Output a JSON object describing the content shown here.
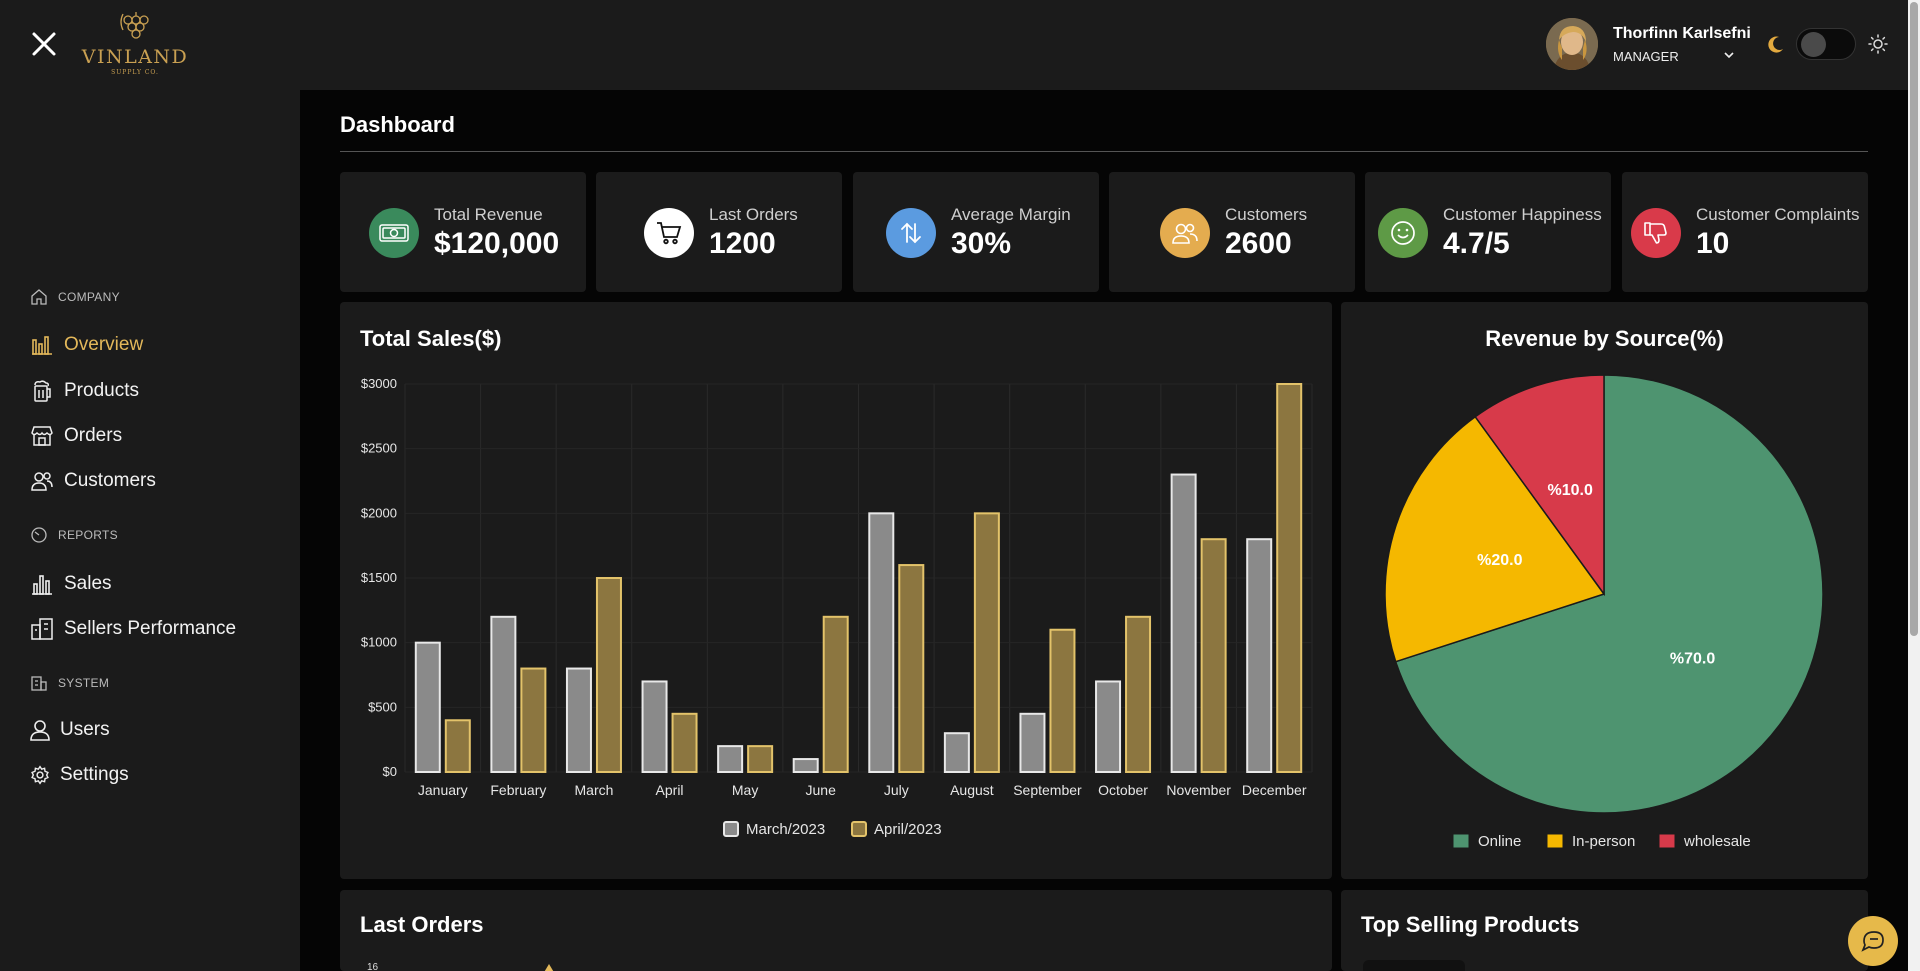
{
  "brand": {
    "name": "VINLAND",
    "tagline": "SUPPLY CO."
  },
  "user": {
    "name": "Thorfinn Karlsefni",
    "role": "MANAGER"
  },
  "sidebar": {
    "sections": [
      {
        "label": "COMPANY",
        "icon": "home-icon",
        "items": [
          {
            "label": "Overview",
            "icon": "bar-chart-icon",
            "active": true
          },
          {
            "label": "Products",
            "icon": "beer-mug-icon",
            "active": false
          },
          {
            "label": "Orders",
            "icon": "store-icon",
            "active": false
          },
          {
            "label": "Customers",
            "icon": "users-icon",
            "active": false
          }
        ]
      },
      {
        "label": "REPORTS",
        "icon": "gauge-icon",
        "items": [
          {
            "label": "Sales",
            "icon": "bar-graph-icon",
            "active": false
          },
          {
            "label": "Sellers Performance",
            "icon": "buildings-icon",
            "active": false
          }
        ]
      },
      {
        "label": "SYSTEM",
        "icon": "building-icon",
        "items": [
          {
            "label": "Users",
            "icon": "user-icon",
            "active": false
          },
          {
            "label": "Settings",
            "icon": "gear-icon",
            "active": false
          }
        ]
      }
    ]
  },
  "page": {
    "title": "Dashboard"
  },
  "stats": [
    {
      "label": "Total Revenue",
      "value": "$120,000",
      "icon": "money-icon",
      "color": "#3a8a5c"
    },
    {
      "label": "Last Orders",
      "value": "1200",
      "icon": "cart-icon",
      "color": "#ffffff"
    },
    {
      "label": "Average Margin",
      "value": "30%",
      "icon": "arrows-updown-icon",
      "color": "#5b9be0"
    },
    {
      "label": "Customers",
      "value": "2600",
      "icon": "customers-icon",
      "color": "#e4ac4f"
    },
    {
      "label": "Customer Happiness",
      "value": "4.7/5",
      "icon": "smile-icon",
      "color": "#5e9a46"
    },
    {
      "label": "Customer Complaints",
      "value": "10",
      "icon": "thumbs-down-icon",
      "color": "#d93a4a"
    }
  ],
  "panels": {
    "sales": {
      "title": "Total Sales($)"
    },
    "revenue": {
      "title": "Revenue by Source(%)"
    },
    "last_orders": {
      "title": "Last Orders",
      "peek_tick": "16"
    },
    "top_products": {
      "title": "Top Selling Products"
    }
  },
  "colors": {
    "accent": "#e3b85a",
    "series_a": "#8a8a8a",
    "series_b": "#8c7640",
    "online": "#4e9470",
    "in_person": "#f5b800",
    "wholesale": "#d73a4a"
  },
  "chart_data": [
    {
      "type": "bar",
      "title": "Total Sales($)",
      "categories": [
        "January",
        "February",
        "March",
        "April",
        "May",
        "June",
        "July",
        "August",
        "September",
        "October",
        "November",
        "December"
      ],
      "series": [
        {
          "name": "March/2023",
          "values": [
            1000,
            1200,
            800,
            700,
            200,
            100,
            2000,
            300,
            450,
            700,
            2300,
            1800
          ]
        },
        {
          "name": "April/2023",
          "values": [
            400,
            800,
            1500,
            450,
            200,
            1200,
            1600,
            2000,
            1100,
            1200,
            1800,
            3000
          ]
        }
      ],
      "ylim": [
        0,
        3000
      ],
      "yticks": [
        "$0",
        "$500",
        "$1000",
        "$1500",
        "$2000",
        "$2500",
        "$3000"
      ],
      "xlabel": "",
      "ylabel": "",
      "legend": "bottom"
    },
    {
      "type": "pie",
      "title": "Revenue by Source(%)",
      "labels": [
        "Online",
        "In-person",
        "wholesale"
      ],
      "values": [
        70,
        20,
        10
      ],
      "data_labels": [
        "%70.0",
        "%20.0",
        "%10.0"
      ],
      "legend": "bottom"
    }
  ]
}
